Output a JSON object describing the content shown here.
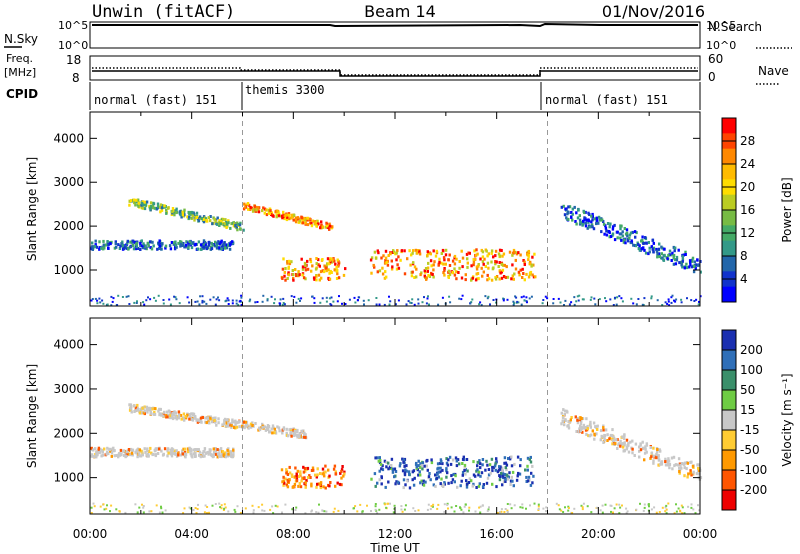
{
  "header": {
    "station": "Unwin (fitACF)",
    "beam": "Beam 14",
    "date": "01/Nov/2016"
  },
  "summary_panels": {
    "nsky_label": "N.Sky",
    "nsearch_label": "N.Search",
    "log_top": "10^5",
    "log_bottom": "10^0",
    "freq_label_1": "Freq.",
    "freq_label_2": "[MHz]",
    "freq_ticks": [
      "18",
      "8"
    ],
    "nave_label": "Nave",
    "nave_ticks": [
      "60",
      "0"
    ],
    "cpid_label": "CPID",
    "cpid_segments": [
      {
        "label": "normal (fast) 151",
        "start_hour": 0,
        "end_hour": 6
      },
      {
        "label": "themis 3300",
        "start_hour": 6,
        "end_hour": 18
      },
      {
        "label": "normal (fast) 151",
        "start_hour": 18,
        "end_hour": 24
      }
    ]
  },
  "chart_data": [
    {
      "type": "heatmap",
      "title": "",
      "xlabel": "Time UT",
      "ylabel": "Slant Range [km]",
      "xlim": [
        0,
        24
      ],
      "ylim": [
        180,
        4600
      ],
      "x_ticks": [
        "00:00",
        "04:00",
        "08:00",
        "12:00",
        "16:00",
        "20:00",
        "00:00"
      ],
      "y_ticks": [
        1000,
        2000,
        3000,
        4000
      ],
      "colorbar_label": "Power [dB]",
      "colorbar_ticks": [
        "28",
        "24",
        "20",
        "16",
        "12",
        "8",
        "4"
      ],
      "colorbar_colors": [
        "#ff0000",
        "#ff4400",
        "#ff8800",
        "#ffbb00",
        "#ffdd00",
        "#bbcc22",
        "#77bb44",
        "#44aa66",
        "#339988",
        "#2266aa",
        "#1133cc",
        "#0000ff"
      ],
      "scatter_regions": [
        {
          "name": "band",
          "start_hour": 0.0,
          "end_hour": 5.6,
          "range_km": [
            1500,
            1700
          ],
          "level": "low"
        },
        {
          "name": "arc",
          "start_hour": 1.5,
          "end_hour": 6.0,
          "range_km": [
            2000,
            2600
          ],
          "level": "mid"
        },
        {
          "name": "arc-strong",
          "start_hour": 6.0,
          "end_hour": 9.5,
          "range_km": [
            2000,
            2500
          ],
          "level": "high"
        },
        {
          "name": "blob",
          "start_hour": 7.5,
          "end_hour": 10.0,
          "range_km": [
            800,
            1300
          ],
          "level": "high"
        },
        {
          "name": "patch",
          "start_hour": 11.0,
          "end_hour": 17.5,
          "range_km": [
            800,
            1500
          ],
          "level": "high"
        },
        {
          "name": "tail",
          "start_hour": 18.5,
          "end_hour": 24.0,
          "range_km": [
            1100,
            2400
          ],
          "level": "low"
        }
      ]
    },
    {
      "type": "heatmap",
      "title": "",
      "xlabel": "Time UT",
      "ylabel": "Slant Range [km]",
      "xlim": [
        0,
        24
      ],
      "ylim": [
        180,
        4600
      ],
      "x_ticks": [
        "00:00",
        "04:00",
        "08:00",
        "12:00",
        "16:00",
        "20:00",
        "00:00"
      ],
      "y_ticks": [
        1000,
        2000,
        3000,
        4000
      ],
      "colorbar_label": "Velocity [m s⁻¹]",
      "colorbar_ticks": [
        "200",
        "100",
        "50",
        "15",
        "-15",
        "-50",
        "-100",
        "-200"
      ],
      "colorbar_colors": [
        "#1a2fb0",
        "#2f6fb8",
        "#3a8f6a",
        "#6fcc44",
        "#c8c8c8",
        "#ffcc33",
        "#ff9900",
        "#ff5500",
        "#ee0000"
      ],
      "scatter_regions": [
        {
          "name": "band",
          "start_hour": 0.0,
          "end_hour": 5.6,
          "range_km": [
            1500,
            1700
          ],
          "level": "ground"
        },
        {
          "name": "arc",
          "start_hour": 1.5,
          "end_hour": 8.5,
          "range_km": [
            2000,
            2600
          ],
          "level": "ground"
        },
        {
          "name": "blob",
          "start_hour": 7.5,
          "end_hour": 10.0,
          "range_km": [
            800,
            1300
          ],
          "level": "away"
        },
        {
          "name": "patch",
          "start_hour": 11.0,
          "end_hour": 17.5,
          "range_km": [
            800,
            1500
          ],
          "level": "toward"
        },
        {
          "name": "tail",
          "start_hour": 18.5,
          "end_hour": 24.0,
          "range_km": [
            1100,
            2400
          ],
          "level": "ground"
        }
      ]
    }
  ]
}
